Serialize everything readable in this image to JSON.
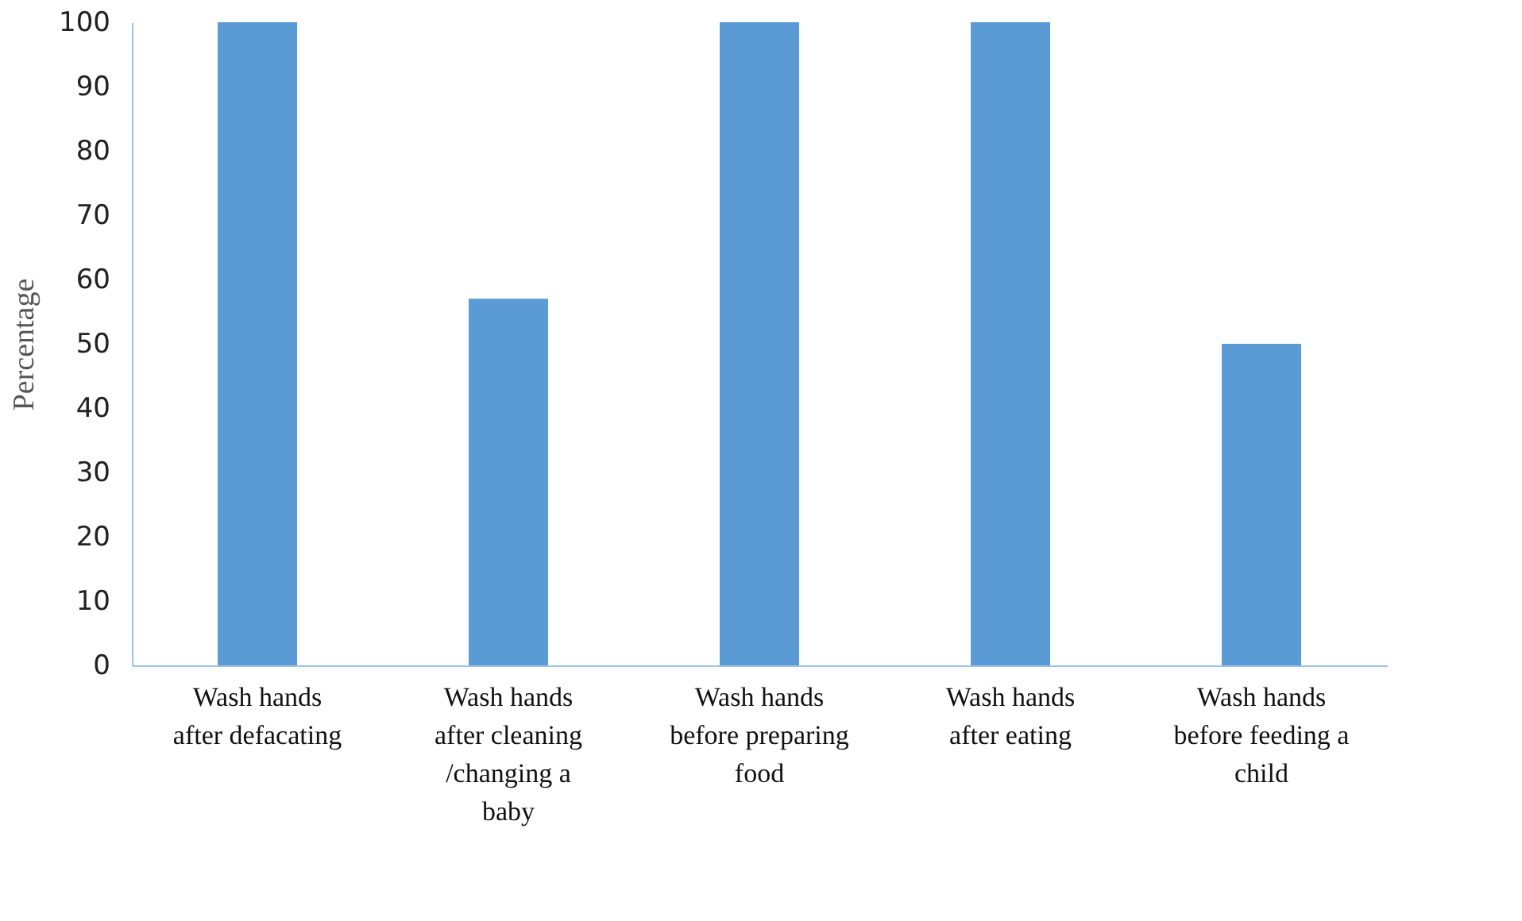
{
  "chart_data": {
    "type": "bar",
    "ylabel": "Percentage",
    "categories": [
      "Wash hands\nafter defacating",
      "Wash hands\nafter  cleaning\n/changing a\nbaby",
      "Wash hands\nbefore preparing\nfood",
      "Wash hands\nafter eating",
      "Wash hands\nbefore feeding a\nchild"
    ],
    "values": [
      100,
      57,
      100,
      100,
      50
    ],
    "color": "#5b9bd5",
    "ylim": [
      0,
      100
    ],
    "yticks": [
      0,
      10,
      20,
      30,
      40,
      50,
      60,
      70,
      80,
      90,
      100
    ],
    "grid": false
  }
}
